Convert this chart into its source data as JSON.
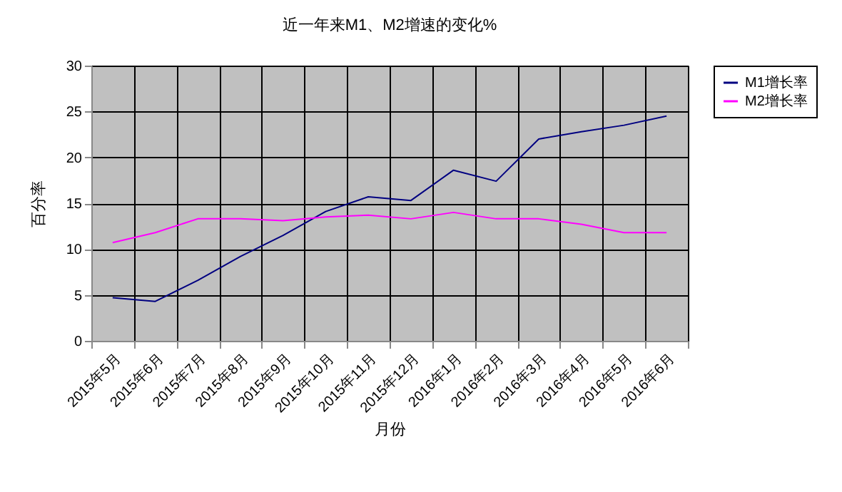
{
  "chart_data": {
    "type": "line",
    "title": "近一年来M1、M2增速的变化%",
    "xlabel": "月份",
    "ylabel": "百分率",
    "categories": [
      "2015年5月",
      "2015年6月",
      "2015年7月",
      "2015年8月",
      "2015年9月",
      "2015年10月",
      "2015年11月",
      "2015年12月",
      "2016年1月",
      "2016年2月",
      "2016年3月",
      "2016年4月",
      "2016年5月",
      "2016年6月"
    ],
    "series": [
      {
        "name": "M1增长率",
        "color": "#000080",
        "values": [
          4.7,
          4.3,
          6.6,
          9.2,
          11.5,
          14.1,
          15.7,
          15.3,
          18.6,
          17.4,
          22.0,
          22.8,
          23.5,
          24.5
        ]
      },
      {
        "name": "M2增长率",
        "color": "#ff00ff",
        "values": [
          10.7,
          11.8,
          13.3,
          13.3,
          13.1,
          13.5,
          13.7,
          13.3,
          14.0,
          13.3,
          13.3,
          12.7,
          11.8,
          11.8
        ]
      }
    ],
    "ylim": [
      0,
      30
    ],
    "yticks": [
      0,
      5,
      10,
      15,
      20,
      25,
      30
    ],
    "grid": true,
    "legend": "right",
    "marker": "none",
    "line_style": "solid"
  }
}
